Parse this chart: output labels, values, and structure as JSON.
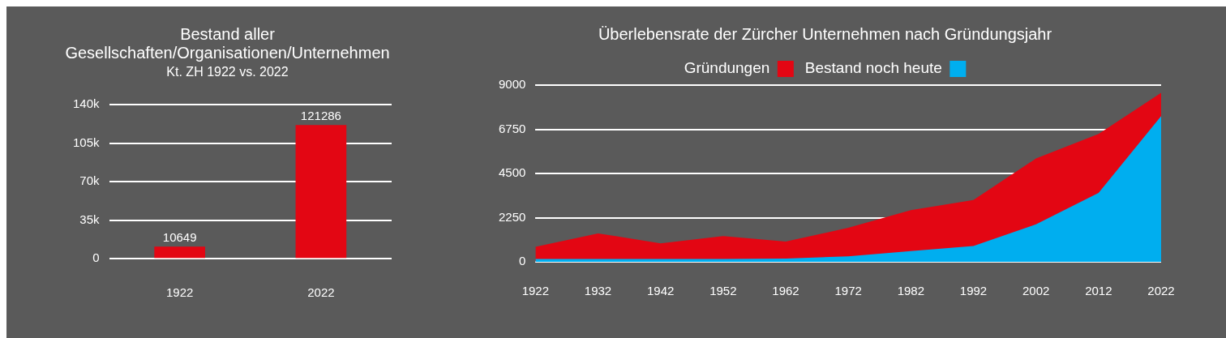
{
  "chart_data": [
    {
      "type": "bar",
      "title": "Bestand aller Gesellschaften/Organisationen/Unternehmen",
      "subtitle": "Kt. ZH 1922 vs. 2022",
      "categories": [
        "1922",
        "2022"
      ],
      "values": [
        10649,
        121286
      ],
      "color": "#e30613",
      "ylim": [
        0,
        140000
      ],
      "yticks": [
        0,
        {
          "value": 35000,
          "label": "35k"
        },
        {
          "value": 70000,
          "label": "70k"
        },
        {
          "value": 105000,
          "label": "105k"
        },
        {
          "value": 140000,
          "label": "140k"
        }
      ],
      "grid": "y",
      "data_labels": true
    },
    {
      "type": "area",
      "title": "Überlebensrate der Zürcher Unternehmen nach Gründungsjahr",
      "x": [
        1922,
        1932,
        1942,
        1952,
        1962,
        1972,
        1982,
        1992,
        2002,
        2012,
        2022
      ],
      "series": [
        {
          "name": "Gründungen",
          "color": "#e30613",
          "values": [
            760,
            1450,
            940,
            1310,
            1030,
            1730,
            2630,
            3150,
            5260,
            6510,
            8610
          ]
        },
        {
          "name": "Bestand noch heute",
          "color": "#00aeef",
          "values": [
            140,
            140,
            140,
            140,
            170,
            280,
            550,
            800,
            1910,
            3510,
            7420
          ]
        }
      ],
      "xlim": [
        1922,
        2022
      ],
      "xticks": [
        1922,
        1932,
        1942,
        1952,
        1962,
        1972,
        1982,
        1992,
        2002,
        2012,
        2022
      ],
      "ylim": [
        0,
        9000
      ],
      "yticks": [
        0,
        2250,
        4500,
        6750,
        9000
      ],
      "grid": "y",
      "legend": "top"
    }
  ]
}
